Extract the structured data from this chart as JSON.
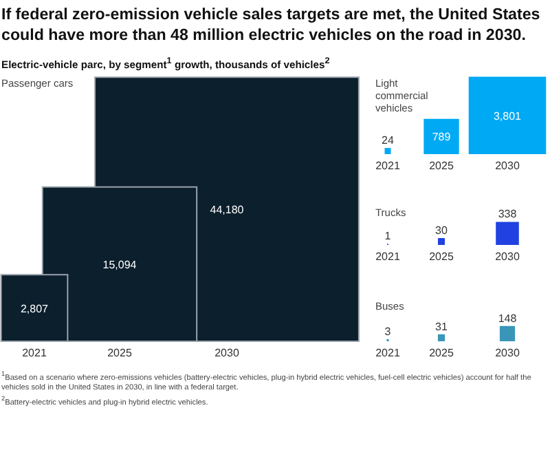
{
  "chart_data": [
    {
      "type": "other",
      "title": "Passenger cars",
      "categories": [
        "2021",
        "2025",
        "2030"
      ],
      "values": [
        2807,
        15094,
        44180
      ],
      "value_labels": [
        "2,807",
        "15,094",
        "44,180"
      ],
      "color": "#0b1f2d",
      "annotations": [
        "If federal zero-emission vehicle sales targets are met, the United States could have more than 48 million electric vehicles on the road in 2030.",
        "Electric-vehicle parc, by segment$^{1}$ growth, thousands of vehicles$^{2}$"
      ]
    },
    {
      "type": "other",
      "title": "Light commercial vehicles",
      "categories": [
        "2021",
        "2025",
        "2030"
      ],
      "values": [
        24,
        789,
        3801
      ],
      "value_labels": [
        "24",
        "789",
        "3,801"
      ],
      "color": "#00a9f4"
    },
    {
      "type": "other",
      "title": "Trucks",
      "categories": [
        "2021",
        "2025",
        "2030"
      ],
      "values": [
        1,
        30,
        338
      ],
      "value_labels": [
        "1",
        "30",
        "338"
      ],
      "color": "#2142e0"
    },
    {
      "type": "other",
      "title": "Buses",
      "categories": [
        "2021",
        "2025",
        "2030"
      ],
      "values": [
        3,
        31,
        148
      ],
      "value_labels": [
        "3",
        "31",
        "148"
      ],
      "color": "#3996b8",
      "annotations": [
        "$^{1}$Based on a scenario where zero-emissions vehicles (battery-electric vehicles, plug-in hybrid electric vehicles, fuel-cell electric vehicles) account for half the vehicles sold in the United States in 2030, in line with a federal target.",
        "$^{2}$Battery-electric vehicles and plug-in hybrid electric vehicles."
      ]
    }
  ]
}
